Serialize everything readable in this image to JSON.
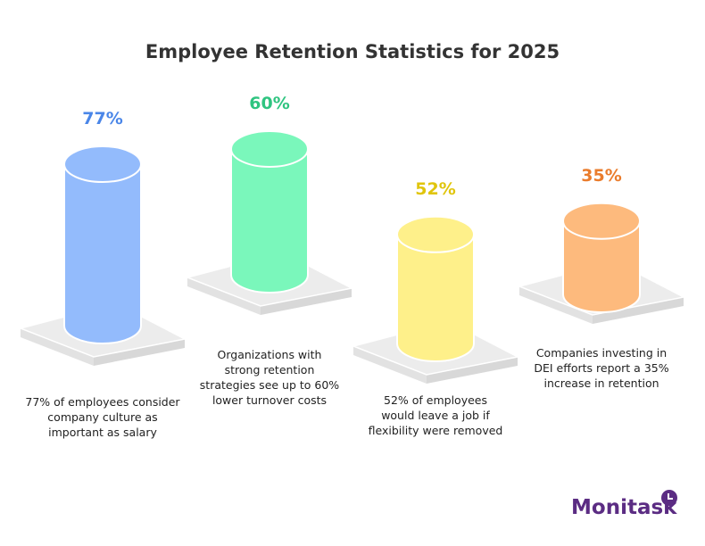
{
  "chart_data": {
    "type": "bar",
    "title": "Employee Retention Statistics for 2025",
    "categories": [
      "77% of employees consider company culture as important as salary",
      "Organizations with strong retention strategies see up to 60% lower turnover costs",
      "52% of employees would leave a job if flexibility were removed",
      "Companies investing in DEI efforts report a 35% increase in retention"
    ],
    "values": [
      77,
      60,
      52,
      35
    ],
    "value_labels": [
      "77%",
      "60%",
      "52%",
      "35%"
    ],
    "colors": [
      "#93BBFC",
      "#7AF7BB",
      "#FEF08A",
      "#FDBA7D"
    ],
    "label_colors": [
      "#4A86E8",
      "#2FC480",
      "#E0C50C",
      "#EA7C2C"
    ]
  },
  "brand": {
    "name": "Monitask",
    "color": "#5B2C83"
  }
}
